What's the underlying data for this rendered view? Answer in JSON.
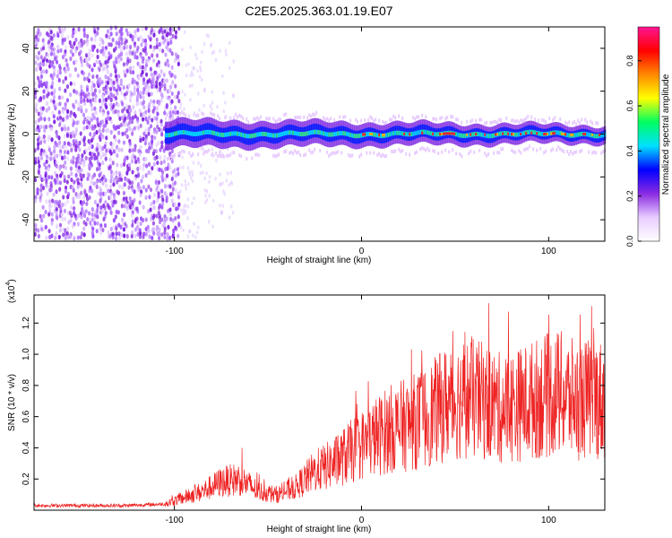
{
  "title": "C2E5.2025.363.01.19.E07",
  "chart_data": [
    {
      "type": "heatmap",
      "xlabel": "Height of straight line (km)",
      "ylabel": "Frequency (Hz)",
      "xlim": [
        -175,
        130
      ],
      "ylim": [
        -50,
        50
      ],
      "xticks": [
        -100,
        0,
        100
      ],
      "yticks": [
        -40,
        -20,
        0,
        20,
        40
      ],
      "noise_region_x": [
        -175,
        -97
      ],
      "signal_band_start_x": -105,
      "signal_center_freq": 0,
      "colorbar": {
        "label": "Normalized spectral amplitude",
        "range": [
          0,
          0.95
        ],
        "ticks": [
          0.0,
          0.2,
          0.4,
          0.6,
          0.8
        ],
        "colors": [
          "#ffffff",
          "#e8ccff",
          "#8a2be2",
          "#0000ff",
          "#00e0ff",
          "#00ff60",
          "#ffff00",
          "#ff8800",
          "#ff0000",
          "#ff1493"
        ]
      },
      "grid": false
    },
    {
      "type": "line",
      "xlabel": "Height of straight line (km)",
      "ylabel": "SNR (10 * v/v)",
      "y_multiplier": "(x10",
      "y_multiplier_exp": "4",
      "y_multiplier_close": ")",
      "xlim": [
        -175,
        130
      ],
      "ylim": [
        0,
        1.38
      ],
      "xticks": [
        -100,
        0,
        100
      ],
      "yticks": [
        0.2,
        0.4,
        0.6,
        0.8,
        1.0,
        1.2
      ],
      "color": "#ee2222",
      "series": [
        {
          "x": [
            -175,
            -150,
            -125,
            -105,
            -95,
            -85,
            -75,
            -65,
            -55,
            -45,
            -35,
            -25,
            -15,
            -5,
            5,
            15,
            25,
            35,
            45,
            55,
            65,
            75,
            85,
            95,
            105,
            115,
            125,
            130
          ],
          "y": [
            0.03,
            0.03,
            0.03,
            0.04,
            0.08,
            0.12,
            0.18,
            0.2,
            0.12,
            0.1,
            0.15,
            0.25,
            0.3,
            0.38,
            0.45,
            0.52,
            0.55,
            0.6,
            0.68,
            0.72,
            0.7,
            0.65,
            0.68,
            0.72,
            0.75,
            0.7,
            0.72,
            0.7
          ]
        }
      ],
      "grid": false
    }
  ]
}
